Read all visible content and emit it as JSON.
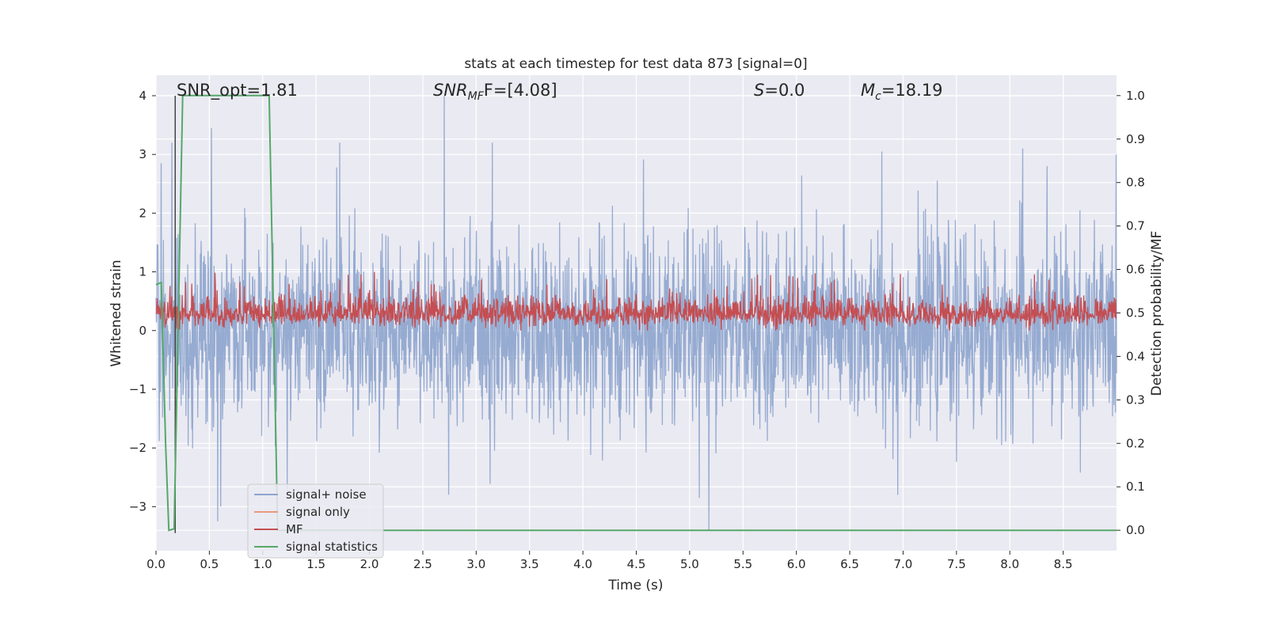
{
  "chart_data": {
    "type": "line",
    "title": "stats at each timestep for test data 873 [signal=0]",
    "xlabel": "Time (s)",
    "ylabel": "Whitened strain",
    "ylabel_right": "Detection probability/MF",
    "xlim": [
      0.0,
      9.0
    ],
    "ylim": [
      -3.75,
      4.35
    ],
    "ylim_right": [
      -0.047,
      1.047
    ],
    "x_ticks": [
      "0.0",
      "0.5",
      "1.0",
      "1.5",
      "2.0",
      "2.5",
      "3.0",
      "3.5",
      "4.0",
      "4.5",
      "5.0",
      "5.5",
      "6.0",
      "6.5",
      "7.0",
      "7.5",
      "8.0",
      "8.5"
    ],
    "y_ticks": [
      "−3",
      "−2",
      "−1",
      "0",
      "1",
      "2",
      "3",
      "4"
    ],
    "y_tick_values": [
      -3,
      -2,
      -1,
      0,
      1,
      2,
      3,
      4
    ],
    "y_right_ticks": [
      "0.0",
      "0.1",
      "0.2",
      "0.3",
      "0.4",
      "0.5",
      "0.6",
      "0.7",
      "0.8",
      "0.9",
      "1.0"
    ],
    "y_right_tick_values": [
      0,
      0.1,
      0.2,
      0.3,
      0.4,
      0.5,
      0.6,
      0.7,
      0.8,
      0.9,
      1.0
    ],
    "grid": true,
    "legend_position": "bottom-left",
    "annotations": {
      "snr_opt": "SNR_opt=1.81",
      "snr_mf_main": "SNR",
      "snr_mf_sub": "MF",
      "snr_mf_rest": "F=[4.08]",
      "s_main": "S",
      "s_rest": "=0.0",
      "mc_main": "M",
      "mc_sub": "c",
      "mc_rest": "=18.19"
    },
    "series": [
      {
        "name": "signal+ noise",
        "color": "#8da4cd",
        "axis": "left",
        "description_values": {
          "range": [
            -3.4,
            4.0
          ],
          "noise_rms": 0.8
        },
        "notable_peaks": [
          {
            "x": 0.05,
            "y": 2.85
          },
          {
            "x": 0.15,
            "y": 3.2
          },
          {
            "x": 0.52,
            "y": 3.45
          },
          {
            "x": 0.58,
            "y": -3.25
          },
          {
            "x": 1.72,
            "y": 3.2
          },
          {
            "x": 2.7,
            "y": 4.0
          },
          {
            "x": 3.15,
            "y": 3.2
          },
          {
            "x": 5.18,
            "y": -3.4
          },
          {
            "x": 5.09,
            "y": -2.85
          },
          {
            "x": 6.8,
            "y": 3.05
          },
          {
            "x": 6.95,
            "y": -2.8
          },
          {
            "x": 8.12,
            "y": 3.1
          },
          {
            "x": 8.35,
            "y": 2.8
          }
        ]
      },
      {
        "name": "signal only",
        "color": "#e8997c",
        "axis": "left",
        "values": []
      },
      {
        "name": "MF",
        "color": "#c44e52",
        "axis": "left",
        "range": [
          0.0,
          1.0
        ]
      },
      {
        "name": "signal statistics",
        "color": "#55a868",
        "axis": "right",
        "x": [
          0.0,
          0.05,
          0.09,
          0.12,
          0.17,
          0.25,
          0.29,
          1.06,
          1.1,
          1.14,
          1.2,
          9.0
        ],
        "values": [
          0.565,
          0.57,
          0.2,
          0.0,
          0.003,
          1.0,
          1.0,
          1.0,
          0.5,
          0.0,
          0.0,
          0.0
        ]
      }
    ],
    "marker": {
      "x": 0.18,
      "color": "#444444"
    }
  }
}
